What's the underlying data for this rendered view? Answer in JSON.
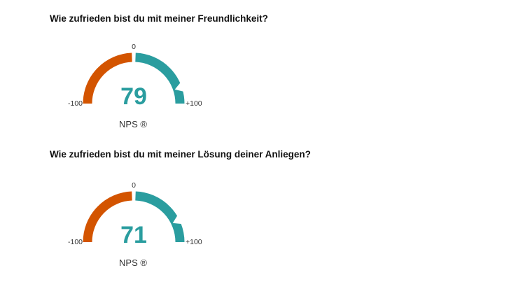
{
  "chart_data": [
    {
      "type": "gauge",
      "title": "Wie zufrieden bist du mit meiner Freundlichkeit?",
      "value": 79,
      "min_label": "-100",
      "mid_label": "0",
      "max_label": "+100",
      "metric_label": "NPS ®",
      "range": [
        -100,
        100
      ]
    },
    {
      "type": "gauge",
      "title": "Wie zufrieden bist du mit meiner Lösung deiner Anliegen?",
      "value": 71,
      "min_label": "-100",
      "mid_label": "0",
      "max_label": "+100",
      "metric_label": "NPS ®",
      "range": [
        -100,
        100
      ]
    }
  ],
  "colors": {
    "negative": "#d35400",
    "positive": "#2a9d9f",
    "marker": "#ffffff",
    "score": "#2a9d9f"
  }
}
